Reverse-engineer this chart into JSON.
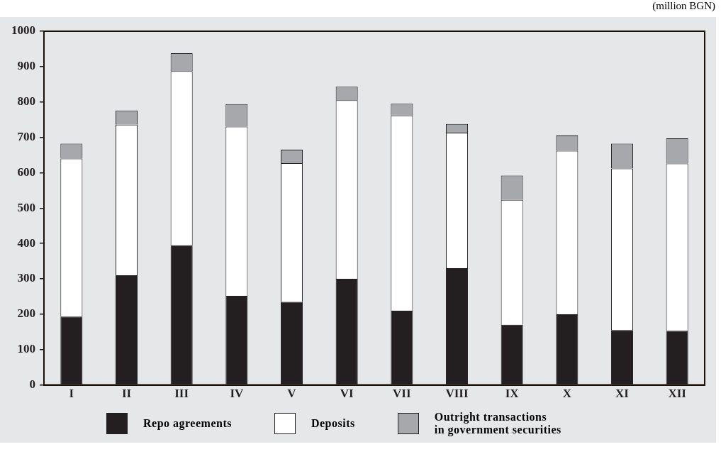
{
  "chart_data": {
    "type": "bar",
    "subtitle": "(million BGN)",
    "stacked": true,
    "grid": false,
    "legend": "bottom",
    "categories": [
      "I",
      "II",
      "III",
      "IV",
      "V",
      "VI",
      "VII",
      "VIII",
      "IX",
      "X",
      "XI",
      "XII"
    ],
    "ylim": [
      0,
      1000
    ],
    "yticks": [
      0,
      100,
      200,
      300,
      400,
      500,
      600,
      700,
      800,
      900,
      1000
    ],
    "series": [
      {
        "name": "Repo agreements",
        "color": "#231f20",
        "values": [
          193,
          310,
          395,
          252,
          235,
          300,
          210,
          330,
          170,
          200,
          155,
          153
        ]
      },
      {
        "name": "Deposits",
        "color": "#ffffff",
        "values": [
          447,
          426,
          492,
          478,
          392,
          505,
          552,
          383,
          353,
          462,
          457,
          473
        ]
      },
      {
        "name": "Outright transactions\nin government securities",
        "color": "#a7a8ab",
        "values": [
          42,
          40,
          51,
          64,
          38,
          38,
          33,
          25,
          69,
          43,
          70,
          71
        ]
      }
    ]
  }
}
